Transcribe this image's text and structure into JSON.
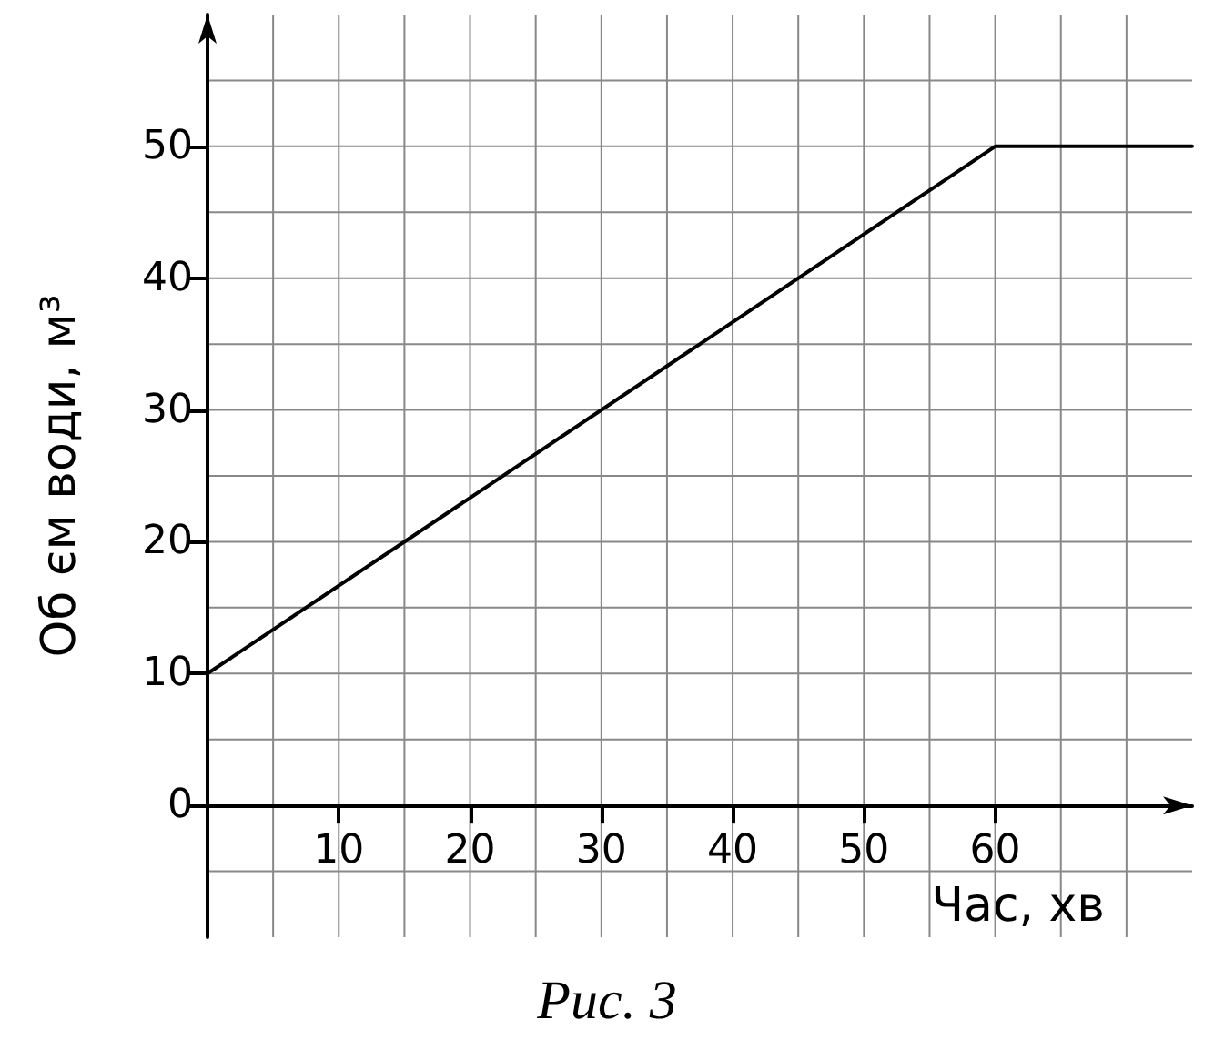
{
  "chart_data": {
    "type": "line",
    "xlabel": "Час, хв",
    "ylabel": "Об єм води, м³",
    "annotations": [
      "Рис. 3"
    ],
    "x": [
      0,
      60,
      75
    ],
    "series": [
      {
        "color": "#000000",
        "values": [
          10,
          50,
          50
        ]
      }
    ],
    "xlim": [
      0,
      75
    ],
    "ylim": [
      -10,
      60
    ],
    "xticks": [
      {
        "value": 5,
        "label": null
      },
      10,
      {
        "value": 15,
        "label": null
      },
      20,
      {
        "value": 25,
        "label": null
      },
      30,
      {
        "value": 35,
        "label": null
      },
      40,
      {
        "value": 45,
        "label": null
      },
      50,
      {
        "value": 55,
        "label": null
      },
      60,
      {
        "value": 65,
        "label": null
      },
      {
        "value": 70,
        "label": null
      }
    ],
    "yticks": [
      {
        "value": -5,
        "label": null
      },
      0,
      {
        "value": 5,
        "label": null
      },
      10,
      {
        "value": 15,
        "label": null
      },
      20,
      {
        "value": 25,
        "label": null
      },
      30,
      {
        "value": 35,
        "label": null
      },
      40,
      {
        "value": 45,
        "label": null
      },
      50,
      {
        "value": 55,
        "label": null
      }
    ],
    "grid": true,
    "marker": "none",
    "line_style": "solid"
  }
}
